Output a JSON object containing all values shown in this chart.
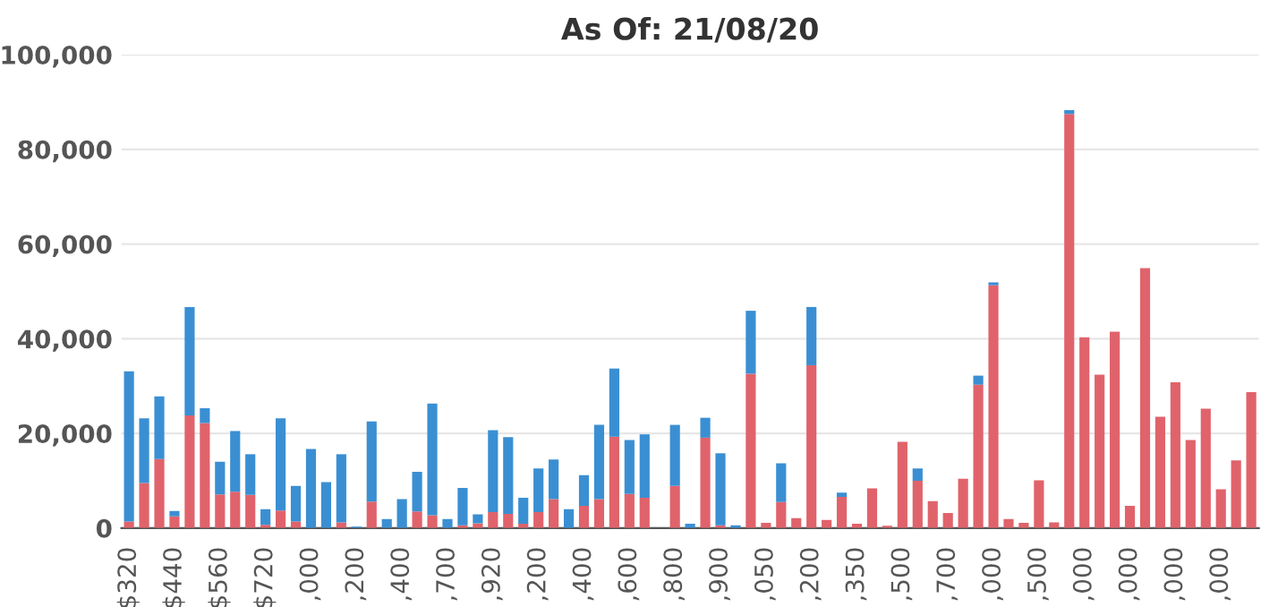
{
  "chart_data": {
    "type": "bar",
    "title": "As Of: 21/08/20",
    "stacked": true,
    "grid": "y",
    "ylim": [
      0,
      100000
    ],
    "yticks": [
      {
        "value": 0,
        "label": "0"
      },
      {
        "value": 20000,
        "label": "20,000"
      },
      {
        "value": 40000,
        "label": "40,000"
      },
      {
        "value": 60000,
        "label": "60,000"
      },
      {
        "value": 80000,
        "label": "80,000"
      },
      {
        "value": 100000,
        "label": "100,000"
      }
    ],
    "categories": [
      "$320",
      null,
      null,
      "$440",
      null,
      null,
      "$560",
      null,
      null,
      "$720",
      null,
      null,
      ",000",
      null,
      null,
      ",200",
      null,
      null,
      ",400",
      null,
      null,
      ",700",
      null,
      null,
      ",920",
      null,
      null,
      ",200",
      null,
      null,
      ",400",
      null,
      null,
      ",600",
      null,
      null,
      ",800",
      null,
      null,
      ",900",
      null,
      null,
      ",050",
      null,
      null,
      ",200",
      null,
      null,
      ",350",
      null,
      null,
      ",500",
      null,
      null,
      ",700",
      null,
      null,
      ",000",
      null,
      null,
      ",500",
      null,
      null,
      ",000",
      null,
      null,
      ",000",
      null,
      null,
      ",000",
      null,
      null,
      ",000",
      null,
      null
    ],
    "series": [
      {
        "color": "#e0636b",
        "values": [
          1400,
          9500,
          14600,
          2500,
          23800,
          22200,
          7100,
          7700,
          7000,
          700,
          3700,
          1400,
          null,
          null,
          1200,
          null,
          5600,
          null,
          null,
          3500,
          2700,
          null,
          600,
          1000,
          3400,
          3000,
          900,
          3400,
          6100,
          null,
          4700,
          6100,
          19300,
          7200,
          6400,
          null,
          8900,
          null,
          19100,
          600,
          null,
          32600,
          1100,
          5500,
          2100,
          34400,
          1700,
          6600,
          900,
          8400,
          500,
          18200,
          10000,
          5700,
          3200,
          10400,
          30300,
          51300,
          1900,
          1100,
          10100,
          1200,
          87500,
          40300,
          32400,
          41500,
          4700,
          54900,
          23500,
          30800,
          18600,
          25200,
          8200,
          14300,
          28700
        ]
      },
      {
        "color": "#3a8fd3",
        "values": [
          31700,
          13700,
          13200,
          1100,
          22900,
          3100,
          6900,
          12800,
          8600,
          3300,
          19500,
          7500,
          16700,
          9700,
          14400,
          300,
          16900,
          1900,
          6100,
          8400,
          23600,
          1900,
          7900,
          1900,
          17300,
          16200,
          5500,
          9200,
          8400,
          4000,
          6500,
          15700,
          14400,
          11400,
          13400,
          null,
          12900,
          900,
          4200,
          15200,
          600,
          13300,
          null,
          8200,
          null,
          12300,
          null,
          900,
          null,
          null,
          null,
          null,
          2600,
          null,
          null,
          null,
          1900,
          600,
          null,
          null,
          null,
          null,
          800,
          null,
          null,
          null,
          null,
          null,
          null,
          null,
          null,
          null,
          null,
          null,
          null
        ]
      }
    ]
  }
}
